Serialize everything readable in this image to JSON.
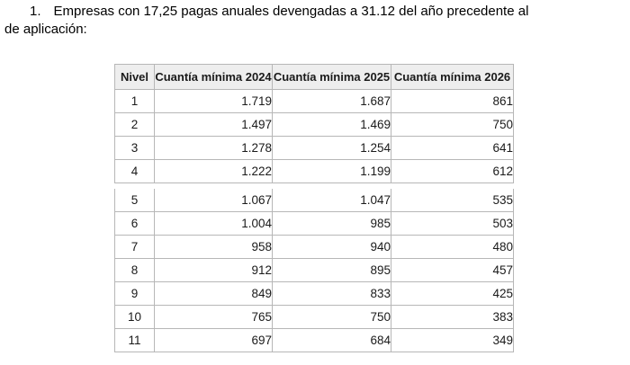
{
  "intro": {
    "number": "1.",
    "line1": "Empresas con 17,25 pagas anuales devengadas a 31.12 del año precedente al",
    "line2": "de aplicación:"
  },
  "table": {
    "headers": [
      "Nivel",
      "Cuantía mínima 2024",
      "Cuantía mínima 2025",
      "Cuantía mínima 2026"
    ],
    "segment1_rows": [
      [
        "1",
        "1.719",
        "1.687",
        "861"
      ],
      [
        "2",
        "1.497",
        "1.469",
        "750"
      ],
      [
        "3",
        "1.278",
        "1.254",
        "641"
      ],
      [
        "4",
        "1.222",
        "1.199",
        "612"
      ]
    ],
    "segment2_rows": [
      [
        "5",
        "1.067",
        "1.047",
        "535"
      ],
      [
        "6",
        "1.004",
        "985",
        "503"
      ],
      [
        "7",
        "958",
        "940",
        "480"
      ],
      [
        "8",
        "912",
        "895",
        "457"
      ],
      [
        "9",
        "849",
        "833",
        "425"
      ],
      [
        "10",
        "765",
        "750",
        "383"
      ],
      [
        "11",
        "697",
        "684",
        "349"
      ]
    ]
  },
  "colors": {
    "header_bg": "#eeeeee",
    "border": "#b7b7b7",
    "text": "#1a1a1a"
  }
}
